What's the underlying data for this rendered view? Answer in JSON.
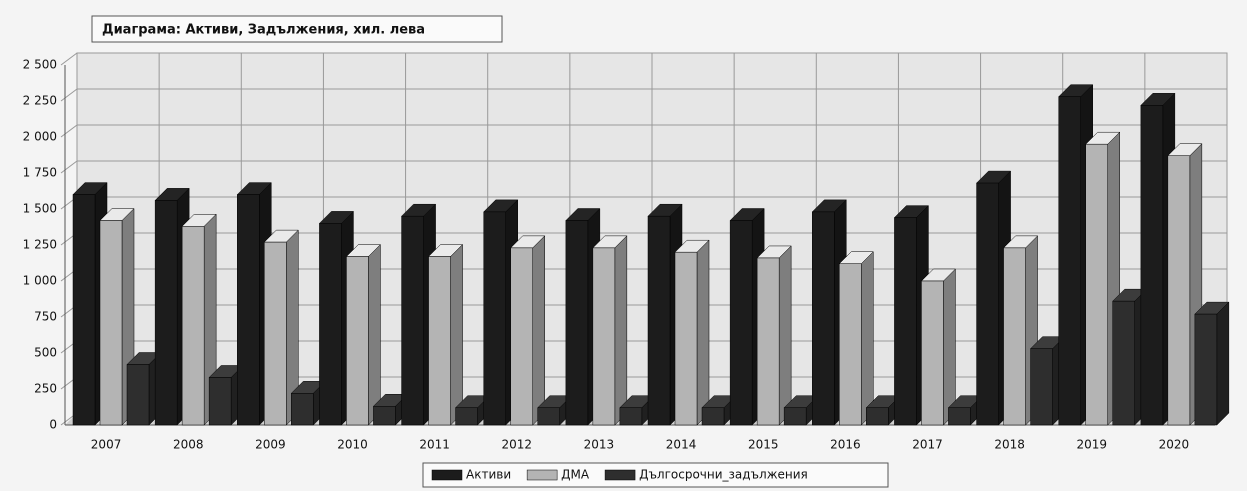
{
  "chart_data": {
    "type": "bar3d",
    "title": "Диаграма: Активи, Задължения, хил. лева",
    "categories": [
      "2007",
      "2008",
      "2009",
      "2010",
      "2011",
      "2012",
      "2013",
      "2014",
      "2015",
      "2016",
      "2017",
      "2018",
      "2019",
      "2020"
    ],
    "series": [
      {
        "name": "Активи",
        "color": "#1c1c1c",
        "values": [
          1600,
          1560,
          1600,
          1400,
          1450,
          1480,
          1420,
          1450,
          1420,
          1480,
          1440,
          1680,
          2280,
          2220
        ]
      },
      {
        "name": "ДМА",
        "color": "#b4b4b4",
        "values": [
          1420,
          1380,
          1270,
          1170,
          1170,
          1230,
          1230,
          1200,
          1160,
          1120,
          1000,
          1230,
          1950,
          1870
        ]
      },
      {
        "name": "Дългосрочни_задължения",
        "color": "#2e2e2e",
        "values": [
          420,
          330,
          220,
          130,
          120,
          120,
          120,
          120,
          120,
          120,
          120,
          530,
          860,
          770
        ]
      }
    ],
    "ylim": [
      0,
      2500
    ],
    "yticks": [
      0,
      250,
      500,
      750,
      {
        "value": 1000,
        "label": "1 000"
      },
      {
        "value": 1250,
        "label": "1 250"
      },
      {
        "value": 1500,
        "label": "1 500"
      },
      {
        "value": 1750,
        "label": "1 750"
      },
      {
        "value": 2000,
        "label": "2 000"
      },
      {
        "value": 2250,
        "label": "2 250"
      },
      {
        "value": 2500,
        "label": "2 500"
      }
    ],
    "grid": true,
    "legend": "bottom"
  }
}
